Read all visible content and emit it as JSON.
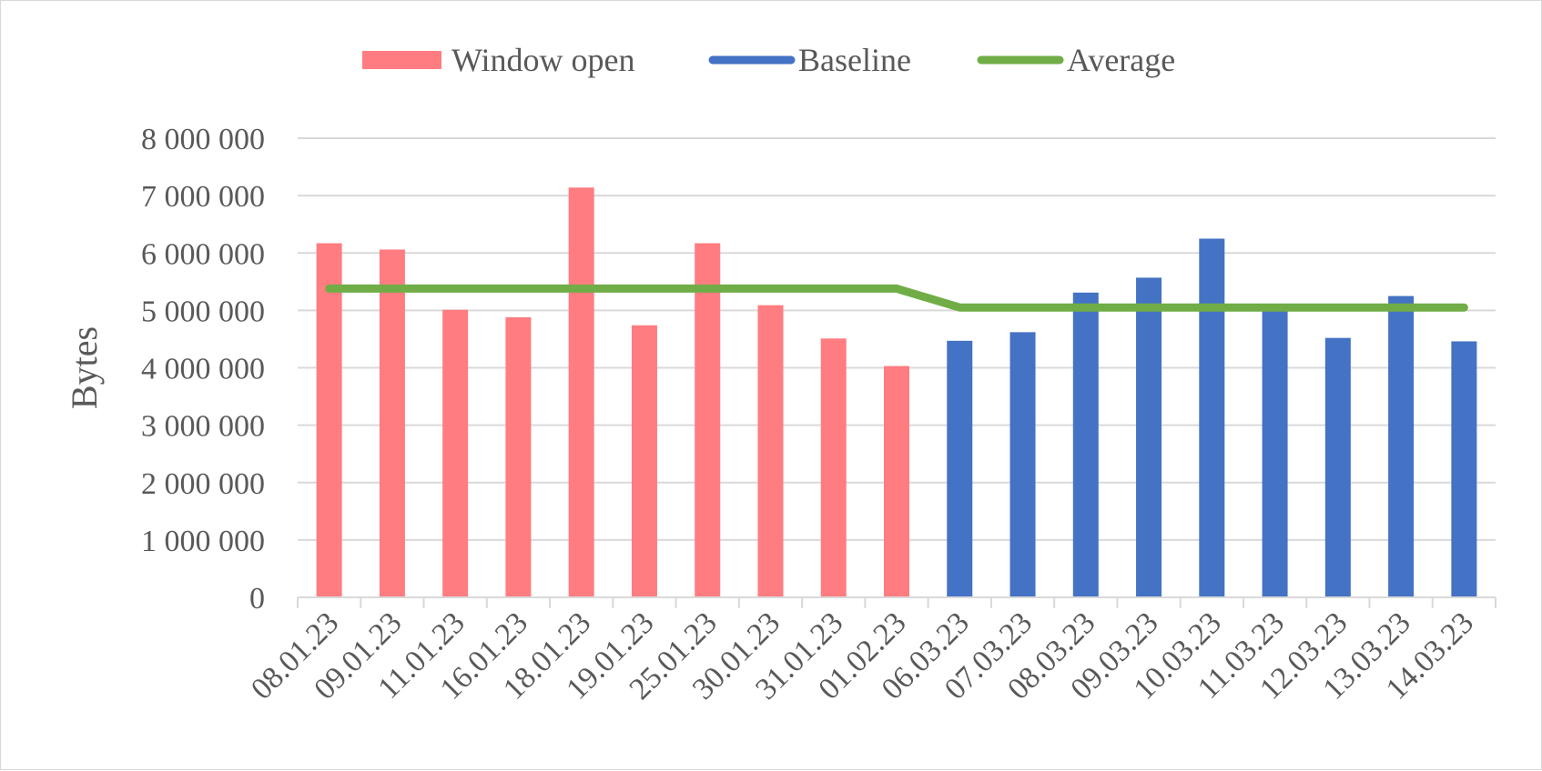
{
  "chart_data": {
    "type": "bar",
    "title": "",
    "xlabel": "",
    "ylabel": "Bytes",
    "ylim": [
      0,
      8000000
    ],
    "yticks": [
      0,
      1000000,
      2000000,
      3000000,
      4000000,
      5000000,
      6000000,
      7000000,
      8000000
    ],
    "ytick_labels": [
      "0",
      "1 000 000",
      "2 000 000",
      "3 000 000",
      "4 000 000",
      "5 000 000",
      "6 000 000",
      "7 000 000",
      "8 000 000"
    ],
    "categories": [
      "08.01.23",
      "09.01.23",
      "11.01.23",
      "16.01.23",
      "18.01.23",
      "19.01.23",
      "25.01.23",
      "30.01.23",
      "31.01.23",
      "01.02.23",
      "06.03.23",
      "07.03.23",
      "08.03.23",
      "09.03.23",
      "10.03.23",
      "11.03.23",
      "12.03.23",
      "13.03.23",
      "14.03.23"
    ],
    "series": [
      {
        "name": "Window open",
        "kind": "bar",
        "color": "#ff7c80",
        "values": [
          6170000,
          6060000,
          5010000,
          4880000,
          7140000,
          4740000,
          6170000,
          5090000,
          4510000,
          4030000,
          null,
          null,
          null,
          null,
          null,
          null,
          null,
          null,
          null
        ]
      },
      {
        "name": "Baseline",
        "kind": "bar",
        "color": "#4472c4",
        "values": [
          null,
          null,
          null,
          null,
          null,
          null,
          null,
          null,
          null,
          null,
          4470000,
          4620000,
          5310000,
          5570000,
          6250000,
          5020000,
          4520000,
          5250000,
          4460000
        ]
      },
      {
        "name": "Average",
        "kind": "line",
        "color": "#70ad47",
        "values": [
          5380000,
          5380000,
          5380000,
          5380000,
          5380000,
          5380000,
          5380000,
          5380000,
          5380000,
          5380000,
          5050000,
          5050000,
          5050000,
          5050000,
          5050000,
          5050000,
          5050000,
          5050000,
          5050000
        ]
      }
    ],
    "legend": {
      "position": "top",
      "entries": [
        "Window open",
        "Baseline",
        "Average"
      ]
    },
    "grid": true,
    "gridline_color": "#d9d9d9",
    "text_color": "#595959"
  }
}
